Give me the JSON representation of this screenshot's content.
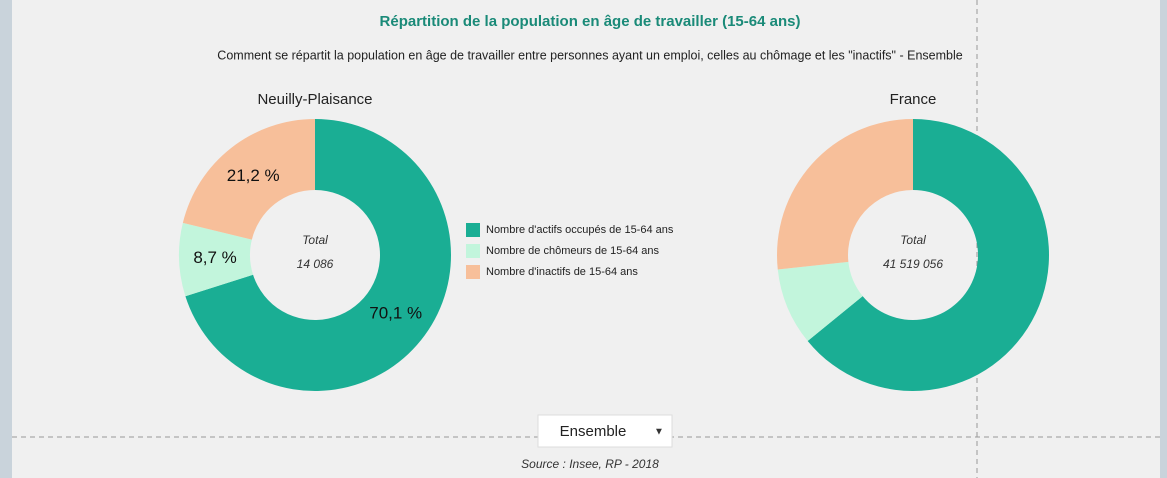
{
  "header": {
    "title": "Répartition de la population en âge de travailler (15-64 ans)",
    "subtitle": "Comment se répartit la population en âge de travailler entre personnes ayant un emploi, celles au chômage et les \"inactifs\" - Ensemble"
  },
  "chart_data": [
    {
      "type": "pie",
      "title": "Neuilly-Plaisance",
      "categories": [
        "Nombre d'actifs occupés de 15-64 ans",
        "Nombre de chômeurs de 15-64 ans",
        "Nombre d'inactifs de 15-64 ans"
      ],
      "colors": [
        "#1aae94",
        "#c2f5dc",
        "#f7bf9a"
      ],
      "values": [
        70.1,
        8.7,
        21.2
      ],
      "value_labels": [
        "70,1 %",
        "8,7 %",
        "21,2 %"
      ],
      "center_title": "Total",
      "center_value": "14 086"
    },
    {
      "type": "pie",
      "title": "France",
      "categories": [
        "Nombre d'actifs occupés de 15-64 ans",
        "Nombre de chômeurs de 15-64 ans",
        "Nombre d'inactifs de 15-64 ans"
      ],
      "colors": [
        "#1aae94",
        "#c2f5dc",
        "#f7bf9a"
      ],
      "values": [
        64.1,
        9.2,
        26.7
      ],
      "center_title": "Total",
      "center_value": "41 519 056"
    }
  ],
  "control": {
    "selected": "Ensemble"
  },
  "footer": {
    "source": "Source : Insee, RP - 2018"
  }
}
